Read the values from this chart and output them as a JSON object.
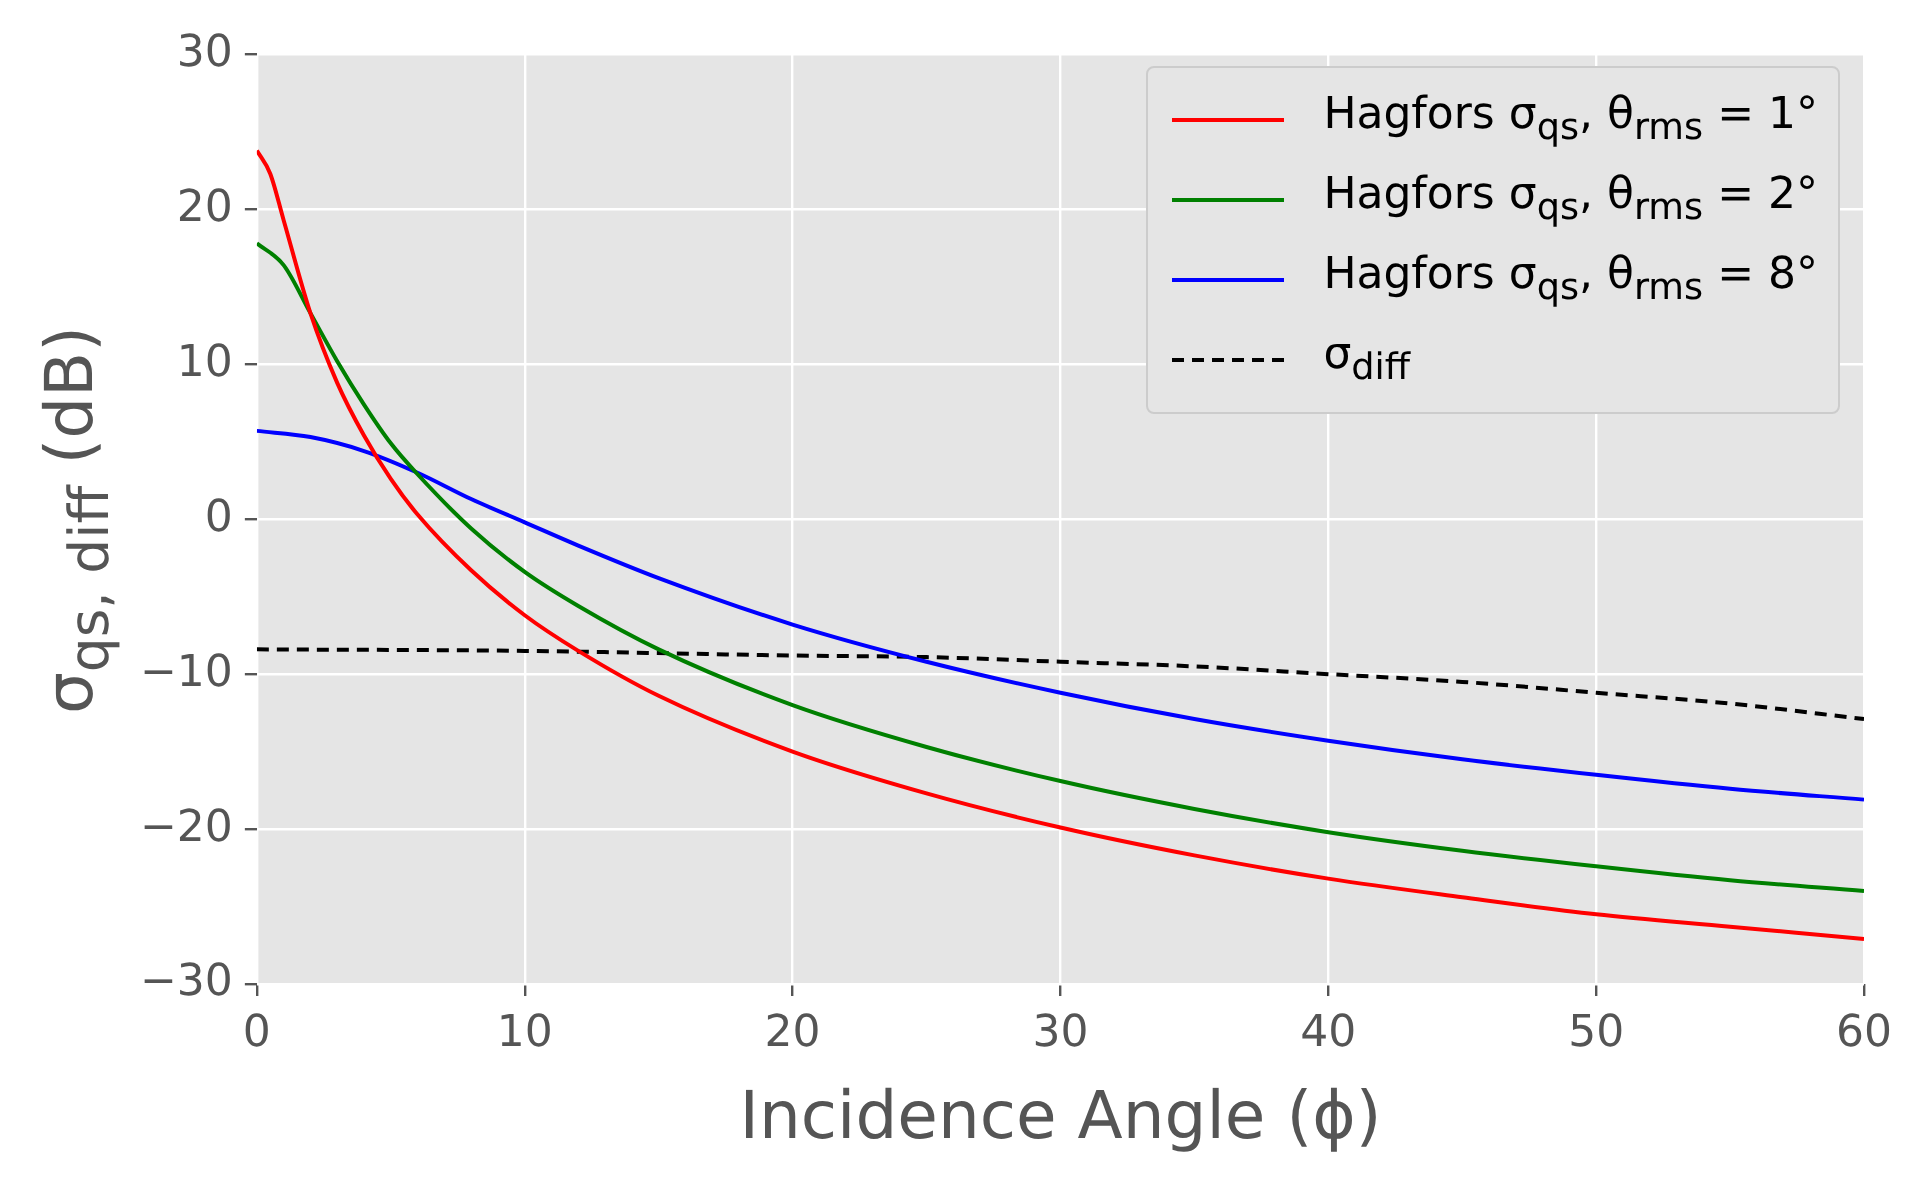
{
  "chart_data": {
    "type": "line",
    "xlabel": "Incidence Angle (ϕ)",
    "ylabel": "σ$_{qs, diff}$ (dB)",
    "xlim": [
      0,
      60
    ],
    "xticks": [
      0,
      10,
      20,
      30,
      40,
      50,
      60
    ],
    "ylim": [
      -30,
      30
    ],
    "yticks": [
      -30,
      -20,
      -10,
      0,
      10,
      20,
      30
    ],
    "grid": true,
    "legend": "top right",
    "marker": "none",
    "series": [
      {
        "name": "Hagfors σ$_{qs}$, θ$_{rms}$ = 1°",
        "color": "#ff0000",
        "line_style": "solid",
        "x": [
          0,
          0.5,
          1,
          2,
          3,
          4,
          5,
          6,
          8,
          10,
          12,
          15,
          20,
          25,
          30,
          35,
          40,
          45,
          50,
          55,
          60
        ],
        "values": [
          23.8,
          22.3,
          19.3,
          13.3,
          8.8,
          5.4,
          2.6,
          0.3,
          -3.3,
          -6.2,
          -8.5,
          -11.4,
          -15.0,
          -17.7,
          -19.9,
          -21.7,
          -23.2,
          -24.4,
          -25.5,
          -26.3,
          -27.1
        ]
      },
      {
        "name": "Hagfors σ$_{qs}$, θ$_{rms}$ = 2°",
        "color": "#008000",
        "line_style": "solid",
        "x": [
          0,
          1,
          2,
          3,
          4,
          5,
          6,
          8,
          10,
          12,
          15,
          20,
          25,
          30,
          35,
          40,
          45,
          50,
          55,
          60
        ],
        "values": [
          17.8,
          16.4,
          13.3,
          10.2,
          7.4,
          4.9,
          2.9,
          -0.6,
          -3.4,
          -5.6,
          -8.4,
          -12.0,
          -14.7,
          -16.9,
          -18.7,
          -20.2,
          -21.4,
          -22.4,
          -23.3,
          -24.0
        ]
      },
      {
        "name": "Hagfors σ$_{qs}$, θ$_{rms}$ = 8°",
        "color": "#0000ff",
        "line_style": "solid",
        "x": [
          0,
          2,
          4,
          6,
          8,
          10,
          12,
          15,
          20,
          25,
          30,
          35,
          40,
          45,
          50,
          55,
          60
        ],
        "values": [
          5.7,
          5.3,
          4.4,
          3.0,
          1.3,
          -0.2,
          -1.7,
          -3.8,
          -6.8,
          -9.2,
          -11.2,
          -12.9,
          -14.3,
          -15.5,
          -16.5,
          -17.4,
          -18.1
        ]
      },
      {
        "name": "σ$_{diff}$",
        "color": "#000000",
        "line_style": "dashed",
        "x": [
          0,
          10,
          20,
          25,
          30,
          35,
          40,
          45,
          50,
          55,
          60
        ],
        "values": [
          -8.4,
          -8.5,
          -8.8,
          -8.9,
          -9.2,
          -9.5,
          -10.0,
          -10.5,
          -11.2,
          -11.9,
          -12.9
        ]
      }
    ]
  }
}
